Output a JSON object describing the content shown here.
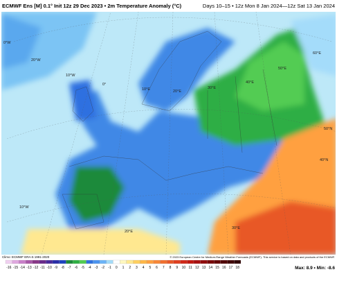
{
  "header": {
    "left": "ECMWF Ens [M] 0.1° Init 12z 29 Dec 2023 • 2m Temperature Anomaly (°C)",
    "right": "Days 10–15 • 12z Mon 8 Jan 2024—12z Sat 13 Jan 2024"
  },
  "map_labels": [
    "0°W",
    "20°W",
    "10°W",
    "0°",
    "10°E",
    "20°E",
    "30°E",
    "40°E",
    "50°E",
    "60°E",
    "50°N",
    "10°W",
    "20°E",
    "30°E",
    "40°N"
  ],
  "climo": "Climo: ECMWF ERA-5 1991-2020",
  "copyright": "© 2023 European Centre for Medium-Range Weather Forecasts (ECMWF). This service is based on data and products of the ECMWF.",
  "colorbar": {
    "ticks": [
      -16,
      -15,
      -14,
      -13,
      -12,
      -11,
      -10,
      -9,
      -8,
      -7,
      -6,
      -5,
      -4,
      -3,
      -2,
      -1,
      0,
      1,
      2,
      3,
      4,
      5,
      6,
      7,
      8,
      9,
      10,
      11,
      12,
      13,
      14,
      15,
      16,
      17,
      18
    ],
    "colors": [
      "#f0d0f0",
      "#e0a8e0",
      "#c880c8",
      "#a858a8",
      "#883888",
      "#6a2a8a",
      "#4a2a9a",
      "#2a2ea8",
      "#1e44c0",
      "#1f8a3a",
      "#2fb044",
      "#52cc52",
      "#2f70e0",
      "#4a94f0",
      "#6cb4f8",
      "#a4dcfa",
      "#ffffff",
      "#fff8c0",
      "#ffe890",
      "#ffd060",
      "#ffb848",
      "#ffa040",
      "#f88838",
      "#f07030",
      "#e85828",
      "#e04020",
      "#d02818",
      "#c01810",
      "#a81010",
      "#900c0c",
      "#780808",
      "#640606",
      "#500404",
      "#400303",
      "#300202"
    ]
  },
  "stats": "Max: 8.9 • Min: -8.6"
}
